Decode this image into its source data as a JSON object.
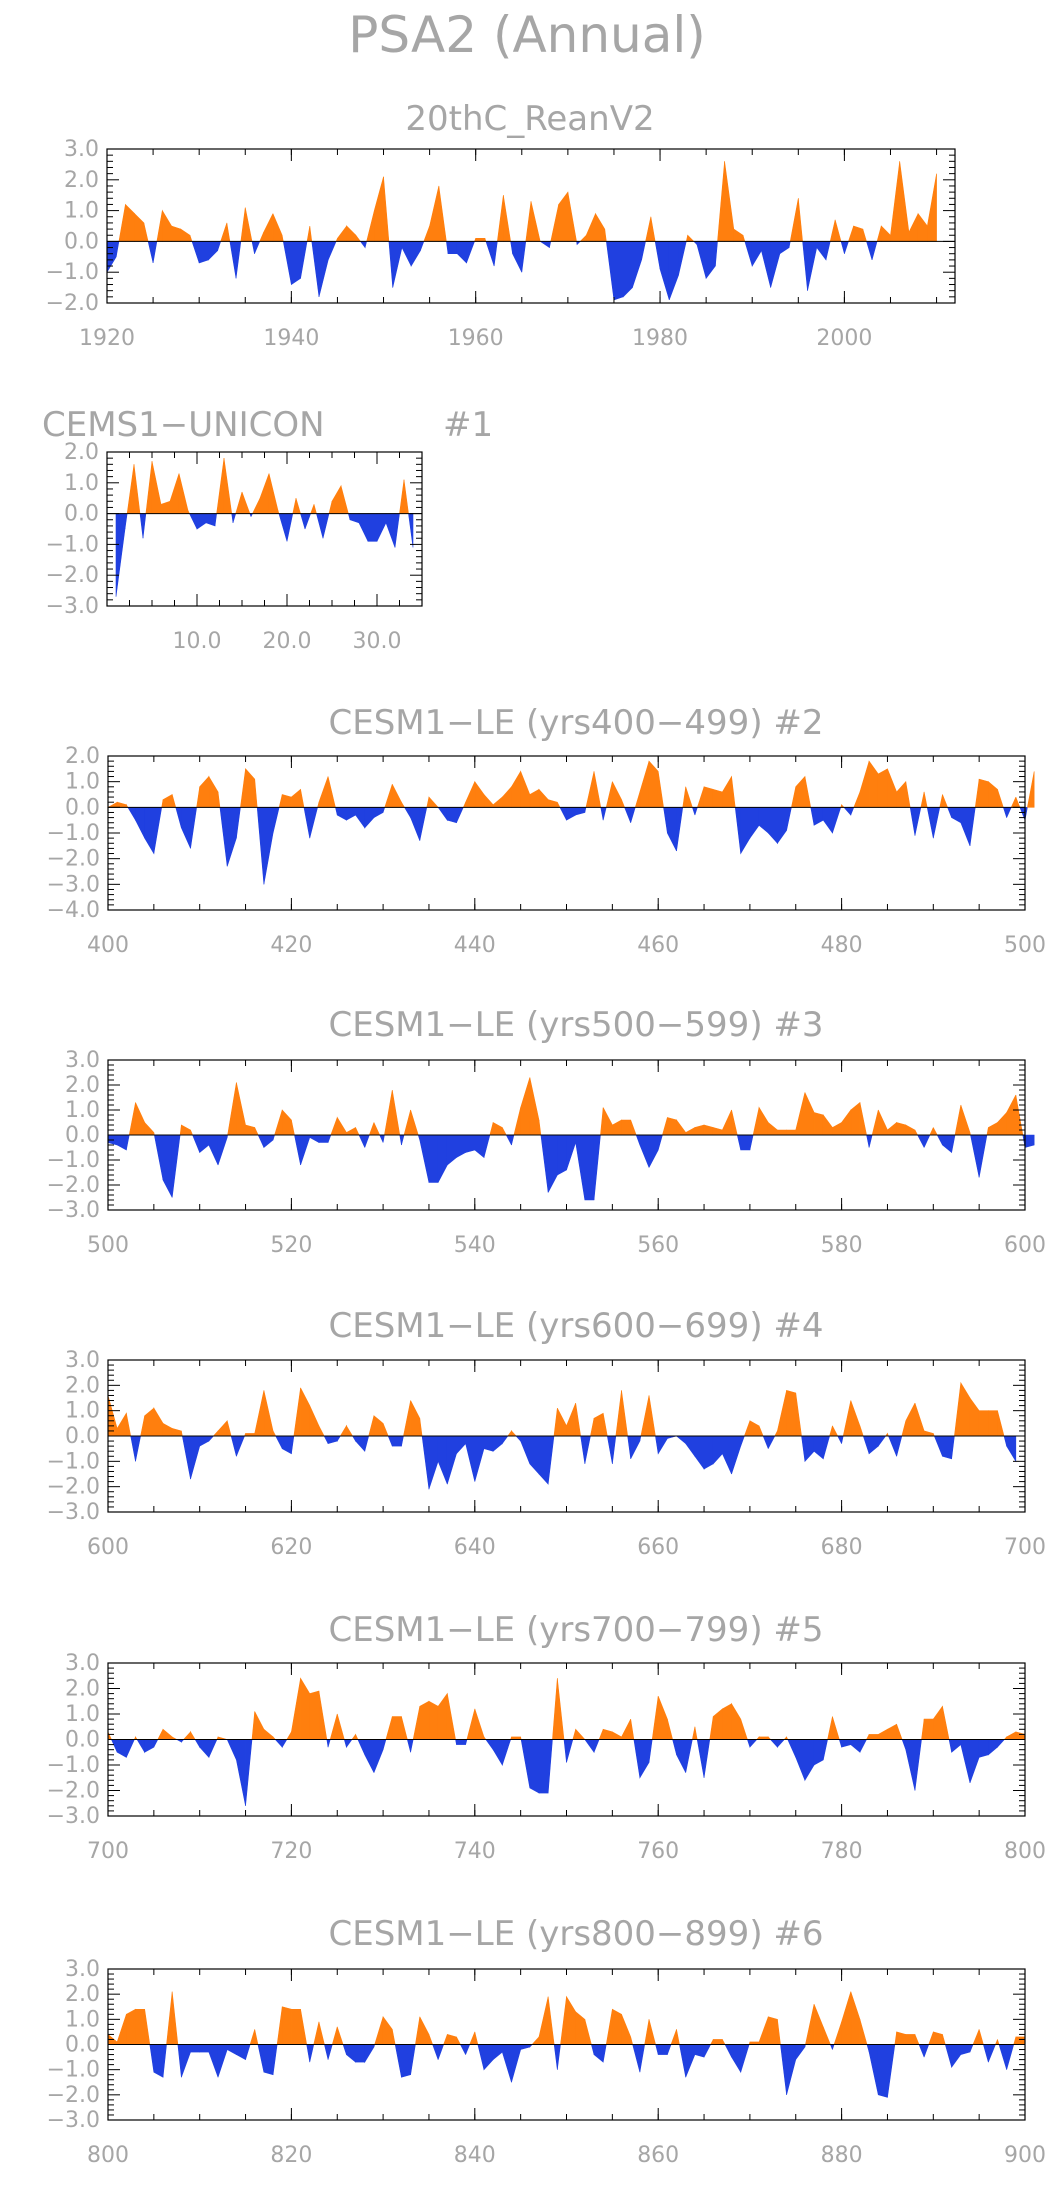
{
  "figure": {
    "title": "PSA2 (Annual)"
  },
  "colors": {
    "positive": "#ff7f0e",
    "negative": "#2040e0",
    "text": "#a6a6a6"
  },
  "chart_data": [
    {
      "type": "area",
      "title": "20thC_ReanV2",
      "run_label": "",
      "xlim": [
        1920,
        2012
      ],
      "ylim": [
        -2.0,
        3.0
      ],
      "xticks": [
        "1920",
        "1940",
        "1960",
        "1980",
        "2000"
      ],
      "yticks": [
        "3.0",
        "2.0",
        "1.0",
        "0.0",
        "−1.0",
        "−2.0"
      ],
      "x_start": 1920,
      "values": [
        -1.0,
        -0.5,
        1.2,
        0.9,
        0.6,
        -0.7,
        1.0,
        0.5,
        0.4,
        0.2,
        -0.7,
        -0.6,
        -0.3,
        0.6,
        -1.2,
        1.1,
        -0.4,
        0.3,
        0.9,
        0.2,
        -1.4,
        -1.2,
        0.5,
        -1.8,
        -0.6,
        0.1,
        0.5,
        0.2,
        -0.2,
        1.0,
        2.1,
        -1.5,
        -0.2,
        -0.8,
        -0.3,
        0.5,
        1.8,
        -0.4,
        -0.4,
        -0.7,
        0.1,
        0.1,
        -0.8,
        1.5,
        -0.4,
        -1.0,
        1.3,
        0.0,
        -0.2,
        1.2,
        1.6,
        -0.1,
        0.2,
        0.9,
        0.4,
        -1.9,
        -1.8,
        -1.5,
        -0.6,
        0.8,
        -0.9,
        -1.9,
        -1.1,
        0.2,
        -0.1,
        -1.2,
        -0.8,
        2.6,
        0.4,
        0.2,
        -0.8,
        -0.3,
        -1.5,
        -0.4,
        -0.2,
        1.4,
        -1.6,
        -0.2,
        -0.6,
        0.7,
        -0.4,
        0.5,
        0.4,
        -0.6,
        0.5,
        0.2,
        2.6,
        0.3,
        0.9,
        0.5,
        2.2
      ]
    },
    {
      "type": "area",
      "title": "CEMS1−UNICON",
      "run_label": "#1",
      "xlim": [
        0,
        35
      ],
      "ylim": [
        -3.0,
        2.0
      ],
      "xticks": [
        "10.0",
        "20.0",
        "30.0"
      ],
      "yticks": [
        "2.0",
        "1.0",
        "0.0",
        "−1.0",
        "−2.0",
        "−3.0"
      ],
      "x_start": 1,
      "values": [
        -2.7,
        -0.5,
        1.6,
        -0.8,
        1.7,
        0.3,
        0.4,
        1.3,
        0.1,
        -0.5,
        -0.3,
        -0.4,
        1.8,
        -0.3,
        0.7,
        -0.1,
        0.5,
        1.3,
        0.1,
        -0.9,
        0.5,
        -0.5,
        0.3,
        -0.8,
        0.4,
        0.9,
        -0.2,
        -0.3,
        -0.9,
        -0.9,
        -0.3,
        -1.1,
        1.1,
        -1.1
      ]
    },
    {
      "type": "area",
      "title": "CESM1−LE (yrs400−499) #2",
      "run_label": "",
      "xlim": [
        400,
        500
      ],
      "ylim": [
        -4.0,
        2.0
      ],
      "xticks": [
        "400",
        "420",
        "440",
        "460",
        "480",
        "500"
      ],
      "yticks": [
        "2.0",
        "1.0",
        "0.0",
        "−1.0",
        "−2.0",
        "−3.0",
        "−4.0"
      ],
      "x_start": 400,
      "values": [
        0.0,
        0.2,
        0.1,
        -0.5,
        -1.2,
        -1.8,
        0.3,
        0.5,
        -0.8,
        -1.6,
        0.8,
        1.2,
        0.6,
        -2.3,
        -1.2,
        1.5,
        1.1,
        -3.0,
        -1.0,
        0.5,
        0.4,
        0.7,
        -1.2,
        0.2,
        1.2,
        -0.3,
        -0.5,
        -0.3,
        -0.8,
        -0.4,
        -0.2,
        0.9,
        0.2,
        -0.4,
        -1.3,
        0.4,
        0.0,
        -0.5,
        -0.6,
        0.2,
        1.0,
        0.5,
        0.1,
        0.4,
        0.8,
        1.4,
        0.5,
        0.7,
        0.3,
        0.2,
        -0.5,
        -0.3,
        -0.2,
        1.4,
        -0.5,
        1.0,
        0.3,
        -0.6,
        0.6,
        1.8,
        1.4,
        -1.0,
        -1.7,
        0.8,
        -0.3,
        0.8,
        0.7,
        0.6,
        1.2,
        -1.8,
        -1.2,
        -0.7,
        -1.0,
        -1.4,
        -0.9,
        0.8,
        1.2,
        -0.7,
        -0.5,
        -1.0,
        0.1,
        -0.3,
        0.6,
        1.8,
        1.3,
        1.5,
        0.6,
        1.0,
        -1.1,
        0.6,
        -1.2,
        0.5,
        -0.4,
        -0.6,
        -1.5,
        1.1,
        1.0,
        0.7,
        -0.4,
        0.4,
        -0.5,
        1.4
      ]
    },
    {
      "type": "area",
      "title": "CESM1−LE (yrs500−599) #3",
      "run_label": "",
      "xlim": [
        500,
        600
      ],
      "ylim": [
        -3.0,
        3.0
      ],
      "xticks": [
        "500",
        "520",
        "540",
        "560",
        "580",
        "600"
      ],
      "yticks": [
        "3.0",
        "2.0",
        "1.0",
        "0.0",
        "−1.0",
        "−2.0",
        "−3.0"
      ],
      "x_start": 500,
      "values": [
        -0.3,
        -0.4,
        -0.6,
        1.3,
        0.5,
        0.1,
        -1.8,
        -2.5,
        0.4,
        0.2,
        -0.7,
        -0.4,
        -1.2,
        -0.1,
        2.1,
        0.4,
        0.3,
        -0.5,
        -0.2,
        1.0,
        0.6,
        -1.2,
        -0.1,
        -0.3,
        -0.3,
        0.7,
        0.1,
        0.3,
        -0.5,
        0.5,
        -0.3,
        1.8,
        -0.4,
        1.0,
        -0.2,
        -1.9,
        -1.9,
        -1.2,
        -0.9,
        -0.7,
        -0.6,
        -0.9,
        0.5,
        0.3,
        -0.4,
        1.1,
        2.3,
        0.6,
        -2.3,
        -1.6,
        -1.4,
        -0.3,
        -2.6,
        -2.6,
        1.1,
        0.4,
        0.6,
        0.6,
        -0.4,
        -1.3,
        -0.6,
        0.7,
        0.6,
        0.1,
        0.3,
        0.4,
        0.3,
        0.2,
        1.0,
        -0.6,
        -0.6,
        1.1,
        0.5,
        0.2,
        0.2,
        0.2,
        1.7,
        0.9,
        0.8,
        0.3,
        0.5,
        1.0,
        1.3,
        -0.5,
        1.0,
        0.2,
        0.5,
        0.4,
        0.2,
        -0.5,
        0.3,
        -0.4,
        -0.7,
        1.2,
        0.1,
        -1.7,
        0.3,
        0.5,
        0.9,
        1.6,
        -0.5,
        -0.4
      ]
    },
    {
      "type": "area",
      "title": "CESM1−LE (yrs600−699) #4",
      "run_label": "",
      "xlim": [
        600,
        700
      ],
      "ylim": [
        -3.0,
        3.0
      ],
      "xticks": [
        "600",
        "620",
        "640",
        "660",
        "680",
        "700"
      ],
      "yticks": [
        "3.0",
        "2.0",
        "1.0",
        "0.0",
        "−1.0",
        "−2.0",
        "−3.0"
      ],
      "x_start": 600,
      "values": [
        1.6,
        0.3,
        0.9,
        -1.0,
        0.8,
        1.1,
        0.5,
        0.3,
        0.2,
        -1.7,
        -0.4,
        -0.2,
        0.2,
        0.6,
        -0.8,
        0.1,
        0.1,
        1.8,
        0.2,
        -0.5,
        -0.7,
        1.9,
        1.2,
        0.4,
        -0.3,
        -0.2,
        0.4,
        -0.2,
        -0.6,
        0.8,
        0.5,
        -0.4,
        -0.4,
        1.4,
        0.7,
        -2.1,
        -1.0,
        -1.9,
        -0.7,
        -0.3,
        -1.8,
        -0.5,
        -0.6,
        -0.3,
        0.2,
        -0.2,
        -1.1,
        -1.5,
        -1.9,
        1.1,
        0.4,
        1.3,
        -1.1,
        0.7,
        0.9,
        -1.1,
        1.8,
        -0.9,
        -0.2,
        1.6,
        -0.7,
        -0.1,
        0.0,
        -0.3,
        -0.8,
        -1.3,
        -1.1,
        -0.7,
        -1.5,
        -0.4,
        0.6,
        0.4,
        -0.5,
        0.2,
        1.8,
        1.7,
        -1.0,
        -0.6,
        -0.9,
        0.4,
        -0.3,
        1.4,
        0.4,
        -0.7,
        -0.4,
        0.1,
        -0.8,
        0.6,
        1.3,
        0.2,
        0.1,
        -0.8,
        -0.9,
        2.1,
        1.5,
        1.0,
        1.0,
        1.0,
        -0.4,
        -1.0
      ]
    },
    {
      "type": "area",
      "title": "CESM1−LE (yrs700−799) #5",
      "run_label": "",
      "xlim": [
        700,
        800
      ],
      "ylim": [
        -3.0,
        3.0
      ],
      "xticks": [
        "700",
        "720",
        "740",
        "760",
        "780",
        "800"
      ],
      "yticks": [
        "3.0",
        "2.0",
        "1.0",
        "0.0",
        "−1.0",
        "−2.0",
        "−3.0"
      ],
      "x_start": 700,
      "values": [
        0.3,
        -0.5,
        -0.7,
        0.1,
        -0.5,
        -0.3,
        0.4,
        0.1,
        -0.1,
        0.3,
        -0.3,
        -0.7,
        0.1,
        0.0,
        -0.8,
        -2.6,
        1.1,
        0.4,
        0.1,
        -0.3,
        0.3,
        2.4,
        1.8,
        1.9,
        -0.3,
        1.0,
        -0.3,
        0.2,
        -0.6,
        -1.3,
        -0.4,
        0.9,
        0.9,
        -0.5,
        1.3,
        1.5,
        1.3,
        1.8,
        -0.2,
        -0.2,
        1.2,
        0.1,
        -0.4,
        -1.0,
        0.1,
        0.1,
        -1.9,
        -2.1,
        -2.1,
        2.4,
        -0.9,
        0.4,
        0.0,
        -0.5,
        0.4,
        0.3,
        0.1,
        0.8,
        -1.5,
        -0.9,
        1.7,
        0.8,
        -0.6,
        -1.3,
        0.5,
        -1.5,
        0.9,
        1.2,
        1.4,
        0.8,
        -0.3,
        0.1,
        0.1,
        -0.3,
        0.1,
        -0.7,
        -1.6,
        -1.0,
        -0.8,
        0.9,
        -0.3,
        -0.2,
        -0.5,
        0.2,
        0.2,
        0.4,
        0.6,
        -0.4,
        -2.0,
        0.8,
        0.8,
        1.3,
        -0.5,
        -0.2,
        -1.7,
        -0.7,
        -0.6,
        -0.3,
        0.1,
        0.3,
        0.2
      ]
    },
    {
      "type": "area",
      "title": "CESM1−LE (yrs800−899) #6",
      "run_label": "",
      "xlim": [
        800,
        900
      ],
      "ylim": [
        -3.0,
        3.0
      ],
      "xticks": [
        "800",
        "820",
        "840",
        "860",
        "880",
        "900"
      ],
      "yticks": [
        "3.0",
        "2.0",
        "1.0",
        "0.0",
        "−1.0",
        "−2.0",
        "−3.0"
      ],
      "x_start": 800,
      "values": [
        0.4,
        0.1,
        1.2,
        1.4,
        1.4,
        -1.1,
        -1.3,
        2.1,
        -1.3,
        -0.3,
        -0.3,
        -0.3,
        -1.3,
        -0.2,
        -0.4,
        -0.6,
        0.6,
        -1.1,
        -1.2,
        1.5,
        1.4,
        1.4,
        -0.7,
        0.9,
        -0.6,
        0.7,
        -0.4,
        -0.7,
        -0.7,
        -0.1,
        1.1,
        0.6,
        -1.3,
        -1.2,
        1.1,
        0.4,
        -0.6,
        0.4,
        0.3,
        -0.4,
        0.5,
        -1.0,
        -0.6,
        -0.3,
        -1.5,
        -0.2,
        -0.1,
        0.3,
        1.9,
        -1.0,
        1.9,
        1.3,
        1.0,
        -0.4,
        -0.7,
        1.4,
        1.2,
        0.3,
        -1.1,
        1.0,
        -0.4,
        -0.4,
        0.6,
        -1.3,
        -0.4,
        -0.5,
        0.2,
        0.2,
        -0.5,
        -1.1,
        0.1,
        0.1,
        1.1,
        1.0,
        -2.0,
        -0.6,
        -0.1,
        1.6,
        0.7,
        -0.2,
        0.9,
        2.1,
        1.0,
        -0.3,
        -2.0,
        -2.1,
        0.5,
        0.4,
        0.4,
        -0.5,
        0.5,
        0.4,
        -0.9,
        -0.4,
        -0.3,
        0.6,
        -0.7,
        0.2,
        -1.0,
        0.3,
        0.3
      ]
    }
  ]
}
